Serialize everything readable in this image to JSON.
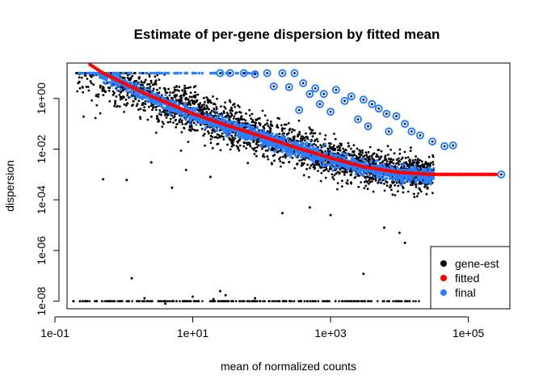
{
  "chart_data": {
    "type": "scatter",
    "title": "Estimate of per-gene dispersion by fitted mean",
    "xlabel": "mean of normalized counts",
    "ylabel": "dispersion",
    "x_scale": "log10",
    "y_scale": "log10",
    "xlim": [
      0.15,
      400000
    ],
    "ylim": [
      5e-09,
      25
    ],
    "x_ticks": [
      {
        "value": 0.1,
        "label": "1e-01"
      },
      {
        "value": 10,
        "label": "1e+01"
      },
      {
        "value": 1000,
        "label": "1e+03"
      },
      {
        "value": 100000,
        "label": "1e+05"
      }
    ],
    "y_ticks": [
      {
        "value": 1e-08,
        "label": "1e-08"
      },
      {
        "value": 1e-06,
        "label": "1e-06"
      },
      {
        "value": 0.0001,
        "label": "1e-04"
      },
      {
        "value": 0.01,
        "label": "1e-02"
      },
      {
        "value": 1,
        "label": "1e+00"
      }
    ],
    "legend_position": "bottom-right",
    "series": [
      {
        "name": "gene-est",
        "color": "#000000"
      },
      {
        "name": "fitted",
        "color": "#ff0000"
      },
      {
        "name": "final",
        "color": "#2a7fff"
      }
    ],
    "fitted_curve": {
      "x": [
        0.3,
        0.5,
        1,
        2,
        5,
        10,
        30,
        100,
        300,
        1000,
        3000,
        10000,
        30000,
        100000,
        250000
      ],
      "y": [
        25,
        10,
        4,
        1.6,
        0.55,
        0.25,
        0.09,
        0.032,
        0.012,
        0.0045,
        0.002,
        0.0012,
        0.001,
        0.001,
        0.001
      ]
    },
    "gene_est_floor": {
      "y": 1e-08,
      "x_range": [
        0.15,
        20000
      ]
    },
    "final_ceiling": {
      "y": 10,
      "x_range": [
        0.2,
        100
      ]
    },
    "gene_est_outliers": [
      {
        "x": 0.5,
        "y": 0.00065
      },
      {
        "x": 1.1,
        "y": 0.0006
      },
      {
        "x": 5,
        "y": 0.0003
      },
      {
        "x": 2.5,
        "y": 0.003
      },
      {
        "x": 18,
        "y": 0.0008
      },
      {
        "x": 8,
        "y": 0.0015
      },
      {
        "x": 4,
        "y": 8e-09
      },
      {
        "x": 2,
        "y": 1.3e-08
      },
      {
        "x": 10,
        "y": 1.5e-08
      },
      {
        "x": 20,
        "y": 1.2e-08
      },
      {
        "x": 25,
        "y": 2.5e-08
      },
      {
        "x": 1.3,
        "y": 8e-08
      },
      {
        "x": 200,
        "y": 3e-05
      },
      {
        "x": 500,
        "y": 5e-05
      },
      {
        "x": 1000,
        "y": 2.5e-05
      },
      {
        "x": 6000,
        "y": 8e-06
      },
      {
        "x": 10000,
        "y": 5e-06
      },
      {
        "x": 12000,
        "y": 2e-06
      },
      {
        "x": 80,
        "y": 1.3e-08
      },
      {
        "x": 30,
        "y": 1.7e-08
      },
      {
        "x": 3000,
        "y": 1.2e-07
      }
    ],
    "final_outliers": [
      {
        "x": 25,
        "y": 10
      },
      {
        "x": 35,
        "y": 10
      },
      {
        "x": 55,
        "y": 10
      },
      {
        "x": 80,
        "y": 9
      },
      {
        "x": 120,
        "y": 10
      },
      {
        "x": 200,
        "y": 10
      },
      {
        "x": 300,
        "y": 10
      },
      {
        "x": 150,
        "y": 3
      },
      {
        "x": 250,
        "y": 2.8
      },
      {
        "x": 400,
        "y": 4
      },
      {
        "x": 600,
        "y": 2.5
      },
      {
        "x": 800,
        "y": 1.5
      },
      {
        "x": 1200,
        "y": 2.2
      },
      {
        "x": 1600,
        "y": 0.8
      },
      {
        "x": 2000,
        "y": 1.2
      },
      {
        "x": 3000,
        "y": 0.9
      },
      {
        "x": 4000,
        "y": 0.6
      },
      {
        "x": 5000,
        "y": 0.4
      },
      {
        "x": 6500,
        "y": 0.25
      },
      {
        "x": 9000,
        "y": 0.2
      },
      {
        "x": 12000,
        "y": 0.1
      },
      {
        "x": 15000,
        "y": 0.05
      },
      {
        "x": 20000,
        "y": 0.035
      },
      {
        "x": 30000,
        "y": 0.02
      },
      {
        "x": 45000,
        "y": 0.013
      },
      {
        "x": 60000,
        "y": 0.014
      },
      {
        "x": 1000,
        "y": 0.3
      },
      {
        "x": 2500,
        "y": 0.15
      },
      {
        "x": 3500,
        "y": 0.08
      },
      {
        "x": 700,
        "y": 0.6
      },
      {
        "x": 500,
        "y": 1.5
      },
      {
        "x": 350,
        "y": 0.35
      },
      {
        "x": 7000,
        "y": 0.05
      },
      {
        "x": 300000,
        "y": 0.001
      }
    ]
  }
}
